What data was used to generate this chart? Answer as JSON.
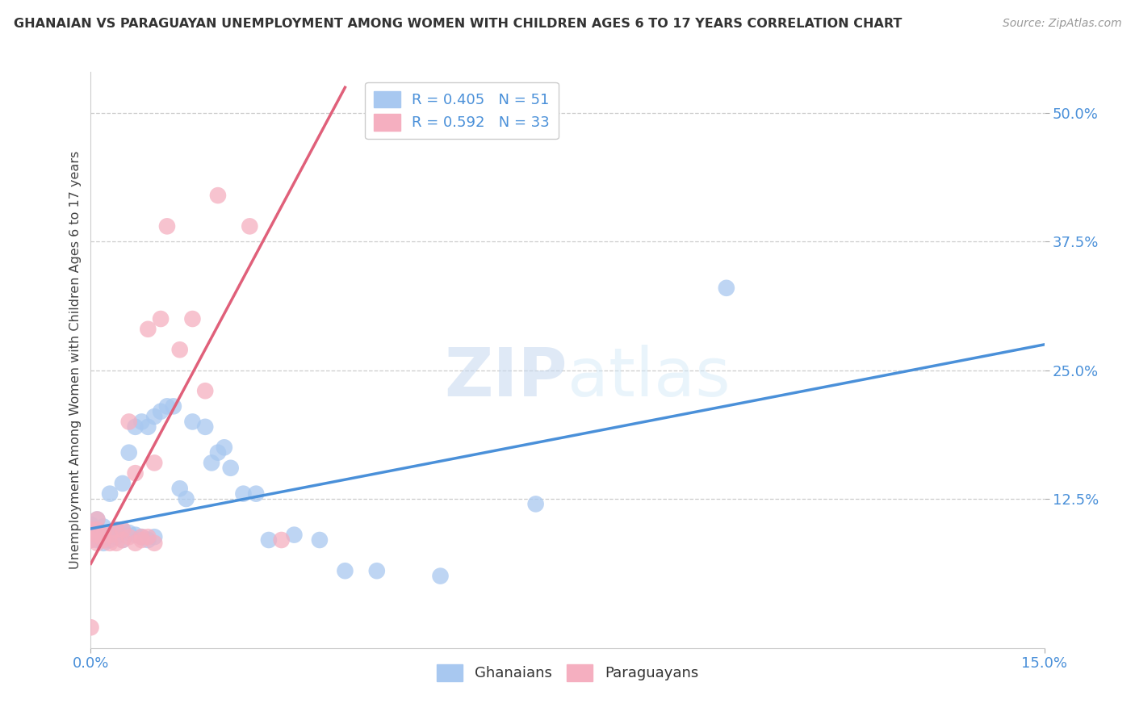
{
  "title": "GHANAIAN VS PARAGUAYAN UNEMPLOYMENT AMONG WOMEN WITH CHILDREN AGES 6 TO 17 YEARS CORRELATION CHART",
  "source": "Source: ZipAtlas.com",
  "ylabel_label": "Unemployment Among Women with Children Ages 6 to 17 years",
  "legend_label1": "Ghanaians",
  "legend_label2": "Paraguayans",
  "R1": 0.405,
  "N1": 51,
  "R2": 0.592,
  "N2": 33,
  "color1": "#a8c8f0",
  "color2": "#f5afc0",
  "line_color1": "#4a90d9",
  "line_color2": "#e0607a",
  "tick_color": "#4a90d9",
  "title_color": "#333333",
  "source_color": "#999999",
  "watermark": "ZIPatlas",
  "background_color": "#ffffff",
  "xlim": [
    0.0,
    0.15
  ],
  "ylim": [
    -0.02,
    0.54
  ],
  "ytick_positions": [
    0.125,
    0.25,
    0.375,
    0.5
  ],
  "ytick_labels": [
    "12.5%",
    "25.0%",
    "37.5%",
    "50.0%"
  ],
  "xtick_positions": [
    0.0,
    0.15
  ],
  "xtick_labels": [
    "0.0%",
    "15.0%"
  ],
  "gh_x": [
    0.0,
    0.0,
    0.0,
    0.0,
    0.001,
    0.001,
    0.001,
    0.001,
    0.002,
    0.002,
    0.002,
    0.002,
    0.003,
    0.003,
    0.003,
    0.004,
    0.004,
    0.005,
    0.005,
    0.005,
    0.006,
    0.006,
    0.007,
    0.007,
    0.008,
    0.008,
    0.009,
    0.009,
    0.01,
    0.01,
    0.011,
    0.012,
    0.013,
    0.014,
    0.015,
    0.016,
    0.018,
    0.019,
    0.02,
    0.021,
    0.022,
    0.024,
    0.026,
    0.028,
    0.032,
    0.036,
    0.04,
    0.045,
    0.055,
    0.07,
    0.1
  ],
  "gh_y": [
    0.085,
    0.09,
    0.095,
    0.1,
    0.085,
    0.09,
    0.095,
    0.105,
    0.082,
    0.088,
    0.092,
    0.098,
    0.085,
    0.09,
    0.13,
    0.088,
    0.095,
    0.085,
    0.095,
    0.14,
    0.092,
    0.17,
    0.09,
    0.195,
    0.088,
    0.2,
    0.085,
    0.195,
    0.088,
    0.205,
    0.21,
    0.215,
    0.215,
    0.135,
    0.125,
    0.2,
    0.195,
    0.16,
    0.17,
    0.175,
    0.155,
    0.13,
    0.13,
    0.085,
    0.09,
    0.085,
    0.055,
    0.055,
    0.05,
    0.12,
    0.33
  ],
  "par_x": [
    0.0,
    0.0,
    0.0,
    0.001,
    0.001,
    0.001,
    0.001,
    0.002,
    0.002,
    0.003,
    0.003,
    0.004,
    0.004,
    0.005,
    0.005,
    0.006,
    0.006,
    0.007,
    0.007,
    0.008,
    0.008,
    0.009,
    0.009,
    0.01,
    0.01,
    0.011,
    0.012,
    0.014,
    0.016,
    0.018,
    0.02,
    0.025,
    0.03
  ],
  "par_y": [
    0.0,
    0.085,
    0.095,
    0.082,
    0.09,
    0.095,
    0.105,
    0.085,
    0.09,
    0.082,
    0.09,
    0.082,
    0.095,
    0.085,
    0.095,
    0.088,
    0.2,
    0.082,
    0.15,
    0.088,
    0.085,
    0.088,
    0.29,
    0.082,
    0.16,
    0.3,
    0.39,
    0.27,
    0.3,
    0.23,
    0.42,
    0.39,
    0.085
  ],
  "blue_line_x": [
    0.0,
    0.15
  ],
  "blue_line_y": [
    0.096,
    0.275
  ],
  "pink_line_x": [
    0.0,
    0.04
  ],
  "pink_line_y": [
    0.062,
    0.525
  ]
}
